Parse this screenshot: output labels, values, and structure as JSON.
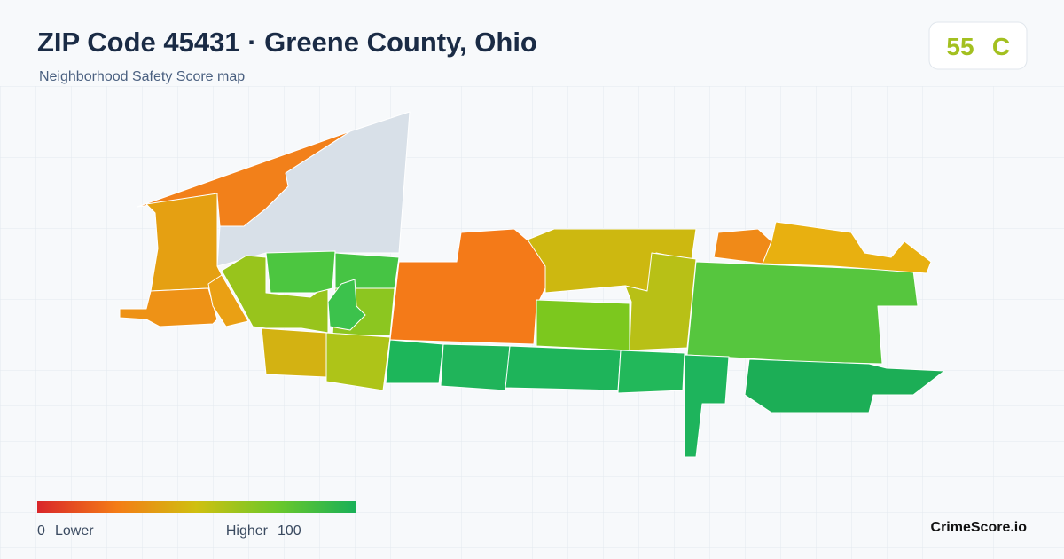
{
  "header": {
    "title": "ZIP Code 45431 · Greene County, Ohio",
    "subtitle": "Neighborhood Safety Score map"
  },
  "score": {
    "value": 55,
    "grade": "C"
  },
  "legend": {
    "min": 0,
    "min_label": "Lower",
    "max_label": "Higher",
    "max": 100
  },
  "brand": "CrimeScore.io"
}
